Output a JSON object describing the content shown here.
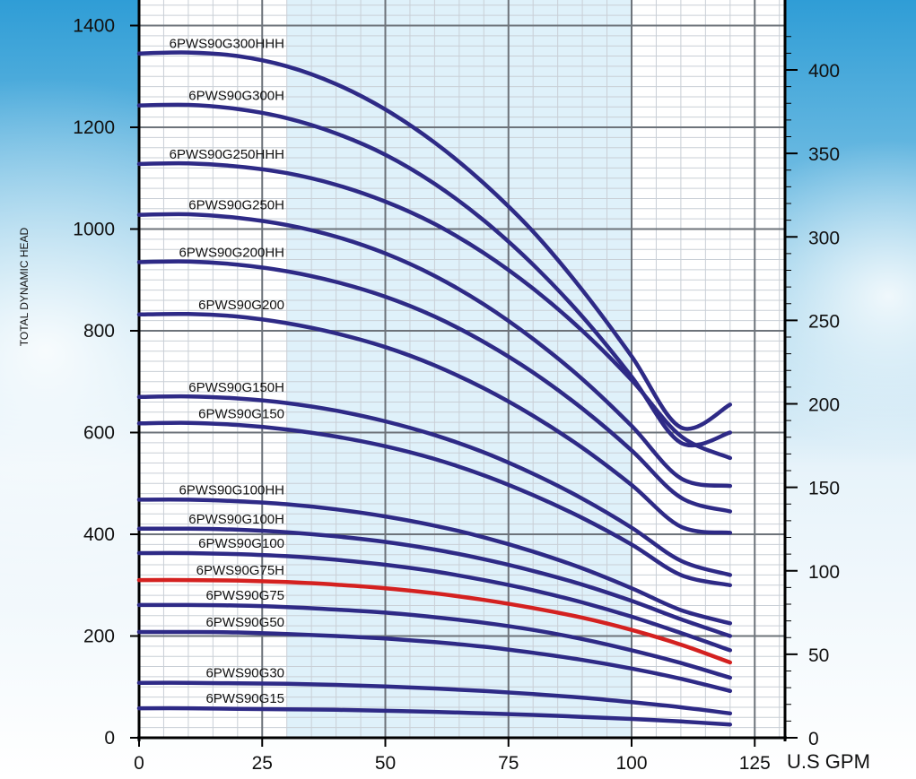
{
  "chart_data": {
    "type": "line",
    "ylabel": "TOTAL DYNAMIC HEAD",
    "xlabel_unit": "U.S GPM",
    "xlim": [
      0,
      131
    ],
    "ylim": [
      0,
      1400
    ],
    "y2lim": [
      0,
      434
    ],
    "x_ticks": [
      0,
      25,
      50,
      75,
      100,
      125
    ],
    "y_ticks": [
      0,
      200,
      400,
      600,
      800,
      1000,
      1200,
      1400
    ],
    "y2_ticks": [
      0,
      50,
      100,
      150,
      200,
      250,
      300,
      350,
      400
    ],
    "shaded_x_range": [
      30,
      100
    ],
    "grid": true,
    "series": [
      {
        "name": "6PWS90G300HHH",
        "color": "#2e2a86",
        "x": [
          0,
          10,
          20,
          30,
          40,
          50,
          60,
          70,
          80,
          90,
          100,
          110,
          120
        ],
        "y": [
          1345,
          1347,
          1340,
          1320,
          1285,
          1235,
          1170,
          1090,
          995,
          880,
          750,
          610,
          655
        ]
      },
      {
        "name": "6PWS90G300H",
        "color": "#2e2a86",
        "x": [
          0,
          10,
          20,
          30,
          40,
          50,
          60,
          70,
          80,
          90,
          100,
          110,
          120
        ],
        "y": [
          1243,
          1244,
          1236,
          1218,
          1188,
          1146,
          1089,
          1017,
          930,
          828,
          710,
          580,
          600
        ]
      },
      {
        "name": "6PWS90G250HHH",
        "color": "#2e2a86",
        "x": [
          0,
          10,
          20,
          30,
          40,
          50,
          60,
          70,
          80,
          90,
          100,
          110,
          120
        ],
        "y": [
          1128,
          1129,
          1123,
          1110,
          1087,
          1054,
          1010,
          953,
          883,
          800,
          703,
          593,
          550
        ]
      },
      {
        "name": "6PWS90G250H",
        "color": "#2e2a86",
        "x": [
          0,
          10,
          20,
          30,
          40,
          50,
          60,
          70,
          80,
          90,
          100,
          110,
          120
        ],
        "y": [
          1028,
          1029,
          1022,
          1008,
          985,
          952,
          908,
          852,
          784,
          705,
          613,
          510,
          495
        ]
      },
      {
        "name": "6PWS90G200HH",
        "color": "#2e2a86",
        "x": [
          0,
          10,
          20,
          30,
          40,
          50,
          60,
          70,
          80,
          90,
          100,
          110,
          120
        ],
        "y": [
          935,
          936,
          930,
          917,
          896,
          867,
          828,
          778,
          718,
          647,
          565,
          472,
          445
        ]
      },
      {
        "name": "6PWS90G200",
        "color": "#2e2a86",
        "x": [
          0,
          10,
          20,
          30,
          40,
          50,
          60,
          70,
          80,
          90,
          100,
          110,
          120
        ],
        "y": [
          832,
          833,
          828,
          815,
          795,
          768,
          732,
          687,
          633,
          570,
          497,
          415,
          403
        ]
      },
      {
        "name": "6PWS90G150H",
        "color": "#2e2a86",
        "x": [
          0,
          10,
          20,
          30,
          40,
          50,
          60,
          70,
          80,
          90,
          100,
          110,
          120
        ],
        "y": [
          670,
          671,
          667,
          658,
          643,
          622,
          595,
          561,
          519,
          470,
          413,
          348,
          320
        ]
      },
      {
        "name": "6PWS90G150",
        "color": "#2e2a86",
        "x": [
          0,
          10,
          20,
          30,
          40,
          50,
          60,
          70,
          80,
          90,
          100,
          110,
          120
        ],
        "y": [
          618,
          619,
          615,
          606,
          592,
          573,
          548,
          516,
          477,
          432,
          380,
          320,
          300
        ]
      },
      {
        "name": "6PWS90G100HH",
        "color": "#2e2a86",
        "x": [
          0,
          10,
          20,
          30,
          40,
          50,
          60,
          70,
          80,
          90,
          100,
          110,
          120
        ],
        "y": [
          468,
          468,
          465,
          459,
          449,
          435,
          417,
          394,
          366,
          333,
          294,
          251,
          225
        ]
      },
      {
        "name": "6PWS90G100H",
        "color": "#2e2a86",
        "x": [
          0,
          10,
          20,
          30,
          40,
          50,
          60,
          70,
          80,
          90,
          100,
          110,
          120
        ],
        "y": [
          411,
          411,
          409,
          404,
          396,
          385,
          370,
          351,
          328,
          301,
          269,
          233,
          200
        ]
      },
      {
        "name": "6PWS90G100",
        "color": "#2e2a86",
        "x": [
          0,
          10,
          20,
          30,
          40,
          50,
          60,
          70,
          80,
          90,
          100,
          110,
          120
        ],
        "y": [
          363,
          363,
          361,
          357,
          350,
          340,
          327,
          310,
          290,
          266,
          238,
          206,
          172
        ]
      },
      {
        "name": "6PWS90G75H",
        "color": "#d42120",
        "x": [
          0,
          10,
          20,
          30,
          40,
          50,
          60,
          70,
          80,
          90,
          100,
          110,
          120
        ],
        "y": [
          310,
          310,
          309,
          306,
          301,
          294,
          284,
          271,
          255,
          236,
          212,
          183,
          148
        ]
      },
      {
        "name": "6PWS90G75",
        "color": "#2e2a86",
        "x": [
          0,
          10,
          20,
          30,
          40,
          50,
          60,
          70,
          80,
          90,
          100,
          110,
          120
        ],
        "y": [
          261,
          261,
          260,
          257,
          252,
          246,
          237,
          226,
          212,
          194,
          172,
          147,
          118
        ]
      },
      {
        "name": "6PWS90G50",
        "color": "#2e2a86",
        "x": [
          0,
          10,
          20,
          30,
          40,
          50,
          60,
          70,
          80,
          90,
          100,
          110,
          120
        ],
        "y": [
          208,
          208,
          207,
          204,
          200,
          195,
          188,
          179,
          167,
          153,
          136,
          116,
          92
        ]
      },
      {
        "name": "6PWS90G30",
        "color": "#2e2a86",
        "x": [
          0,
          10,
          20,
          30,
          40,
          50,
          60,
          70,
          80,
          90,
          100,
          110,
          120
        ],
        "y": [
          108,
          108,
          107,
          106,
          104,
          101,
          97,
          92,
          86,
          79,
          70,
          60,
          48
        ]
      },
      {
        "name": "6PWS90G15",
        "color": "#2e2a86",
        "x": [
          0,
          10,
          20,
          30,
          40,
          50,
          60,
          70,
          80,
          90,
          100,
          110,
          120
        ],
        "y": [
          58,
          58,
          57,
          56,
          55,
          53,
          51,
          48,
          45,
          41,
          37,
          32,
          26
        ]
      }
    ]
  }
}
